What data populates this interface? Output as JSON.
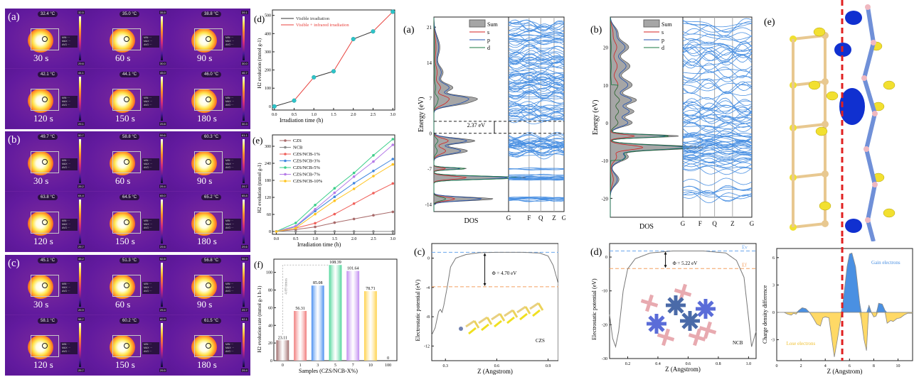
{
  "thermal": {
    "groups": [
      {
        "letter": "(a)",
        "cells": [
          {
            "time": "30 s",
            "temp": "32.4 °C",
            "max": "32.5",
            "min": "29.6"
          },
          {
            "time": "60 s",
            "temp": "35.0 °C",
            "max": "35.5",
            "min": "30.0"
          },
          {
            "time": "90 s",
            "temp": "38.8 °C",
            "max": "39.1",
            "min": "30.0"
          },
          {
            "time": "120 s",
            "temp": "42.1 °C",
            "max": "44.1",
            "min": "29.1"
          },
          {
            "time": "150 s",
            "temp": "44.1 °C",
            "max": "45.0",
            "min": "29.8"
          },
          {
            "time": "180 s",
            "temp": "46.0 °C",
            "max": "46.7",
            "min": "30.3"
          }
        ]
      },
      {
        "letter": "(b)",
        "cells": [
          {
            "time": "30 s",
            "temp": "49.7 °C",
            "max": "50.7",
            "min": "29.2"
          },
          {
            "time": "60 s",
            "temp": "58.8 °C",
            "max": "59.6",
            "min": "29.4"
          },
          {
            "time": "90 s",
            "temp": "60.3 °C",
            "max": "61.1",
            "min": "29.7"
          },
          {
            "time": "120 s",
            "temp": "63.8 °C",
            "max": "64.4",
            "min": "29.7"
          },
          {
            "time": "150 s",
            "temp": "64.5 °C",
            "max": "65.0",
            "min": "29.6"
          },
          {
            "time": "180 s",
            "temp": "65.2 °C",
            "max": "65.8",
            "min": "29.6"
          }
        ]
      },
      {
        "letter": "(c)",
        "cells": [
          {
            "time": "30 s",
            "temp": "45.1 °C",
            "max": "45.2",
            "min": "29.9"
          },
          {
            "time": "60 s",
            "temp": "51.3 °C",
            "max": "52.8",
            "min": "29.4"
          },
          {
            "time": "90 s",
            "temp": "56.8 °C",
            "max": "56.9",
            "min": "29.7"
          },
          {
            "time": "120 s",
            "temp": "58.1 °C",
            "max": "58.7",
            "min": "29.7"
          },
          {
            "time": "150 s",
            "temp": "60.2 °C",
            "max": "60.9",
            "min": "29.5"
          },
          {
            "time": "180 s",
            "temp": "61.5 °C",
            "max": "62.1",
            "min": "29.4"
          }
        ]
      }
    ]
  },
  "chart_data": [
    {
      "id": "d",
      "letter": "(d)",
      "type": "line",
      "xlabel": "Irradiation time (h)",
      "ylabel": "H2 evolution (mmol g-1)",
      "xlim": [
        0,
        3.0
      ],
      "ylim": [
        -20,
        530
      ],
      "xticks": [
        "0.0",
        "0.5",
        "1.0",
        "1.5",
        "2.0",
        "2.5",
        "3.0"
      ],
      "yticks": [
        "0",
        "100",
        "200",
        "300",
        "400",
        "500"
      ],
      "x": [
        0,
        0.5,
        1.0,
        1.5,
        2.0,
        2.5,
        3.0
      ],
      "values": [
        0,
        32,
        160,
        193,
        370,
        412,
        520
      ],
      "segments_colors": [
        "#333333",
        "#e8413c",
        "#333333",
        "#e8413c",
        "#333333",
        "#e8413c"
      ],
      "legend": [
        {
          "label": "Visible irradiation",
          "color": "#333333"
        },
        {
          "label": "Visible + infrared irradiation",
          "color": "#e8413c"
        }
      ],
      "marker_color": "#2ec4c8"
    },
    {
      "id": "e",
      "letter": "(e)",
      "type": "line",
      "xlabel": "Irradiation time (h)",
      "ylabel": "H2 evolution (mmol g-1)",
      "xlim": [
        0,
        3.0
      ],
      "ylim": [
        -10,
        340
      ],
      "xticks": [
        "0.0",
        "0.5",
        "1.0",
        "1.5",
        "2.0",
        "2.5",
        "3.0"
      ],
      "yticks": [
        "0",
        "60",
        "120",
        "180",
        "240",
        "300"
      ],
      "x": [
        0,
        0.5,
        1.0,
        1.5,
        2.0,
        2.5,
        3.0
      ],
      "series": [
        {
          "name": "CZS",
          "color": "#a86a6a",
          "values": [
            0,
            7,
            16,
            31,
            44,
            57,
            69
          ]
        },
        {
          "name": "NCB",
          "color": "#888888",
          "values": [
            0,
            0,
            0,
            0,
            0,
            0,
            0
          ]
        },
        {
          "name": "CZS/NCB-1%",
          "color": "#f0605a",
          "values": [
            0,
            12,
            29,
            61,
            98,
            135,
            169
          ]
        },
        {
          "name": "CZS/NCB-3%",
          "color": "#3f86e0",
          "values": [
            0,
            17,
            72,
            122,
            170,
            213,
            255
          ]
        },
        {
          "name": "CZS/NCB-5%",
          "color": "#3ccf8a",
          "values": [
            0,
            30,
            93,
            152,
            206,
            268,
            325
          ]
        },
        {
          "name": "CZS/NCB-7%",
          "color": "#b57be8",
          "values": [
            0,
            19,
            78,
            136,
            193,
            246,
            305
          ]
        },
        {
          "name": "CZS/NCB-10%",
          "color": "#ffc420",
          "values": [
            0,
            12,
            61,
            108,
            150,
            195,
            236
          ]
        }
      ]
    },
    {
      "id": "f",
      "letter": "(f)",
      "type": "bar",
      "xlabel": "Samples (CZS/NCB-X%)",
      "ylabel": "H2 evolution rate (mmol g-1 h-1)",
      "ylim": [
        0,
        115
      ],
      "yticks": [
        "0",
        "20",
        "40",
        "60",
        "80",
        "100"
      ],
      "categories": [
        "0",
        "1",
        "3",
        "5",
        "7",
        "10",
        "100"
      ],
      "values": [
        23.11,
        56.31,
        85.08,
        108.39,
        101.64,
        78.71,
        0
      ],
      "labels": [
        "23.11",
        "56.31",
        "85.08",
        "108.39",
        "101.64",
        "78.71",
        "0"
      ],
      "colors": [
        "#9e6b6b",
        "#f07a7a",
        "#4a8ff0",
        "#4fd69a",
        "#c08bf0",
        "#ffd24a",
        "#cccccc"
      ],
      "annotation": "4.69 times"
    },
    {
      "id": "dos-a",
      "letter": "(a)",
      "type": "line",
      "xlabel": "DOS",
      "ylabel": "Energy (eV)",
      "ylim": [
        -15.5,
        23
      ],
      "yticks": [
        "-14",
        "-7",
        "0",
        "7",
        "14",
        "21"
      ],
      "kpath": [
        "G",
        "F",
        "Q",
        "Z",
        "G"
      ],
      "gap_label": "2.37 eV",
      "vbm": 0,
      "cbm": 2.37,
      "legend": [
        {
          "label": "Sum",
          "color": "#999999"
        },
        {
          "label": "s",
          "color": "#d42020"
        },
        {
          "label": "p",
          "color": "#2050b0"
        },
        {
          "label": "d",
          "color": "#1a7a40"
        }
      ],
      "band_color": "#4a90e2"
    },
    {
      "id": "dos-b",
      "letter": "(b)",
      "type": "line",
      "xlabel": "DOS",
      "ylabel": "Energy (eV)",
      "ylim": [
        -25,
        28
      ],
      "yticks": [
        "-20",
        "-10",
        "0",
        "10",
        "20"
      ],
      "kpath": [
        "G",
        "F",
        "Q",
        "Z",
        "G"
      ],
      "legend": [
        {
          "label": "Sum",
          "color": "#999999"
        },
        {
          "label": "s",
          "color": "#d42020"
        },
        {
          "label": "p",
          "color": "#2050b0"
        },
        {
          "label": "d",
          "color": "#1a7a40"
        }
      ],
      "band_color": "#4a90e2"
    },
    {
      "id": "pot-c",
      "letter": "(c)",
      "type": "line",
      "xlabel": "Z (Angstrom)",
      "ylabel": "Electrostatic potential (eV)",
      "xlim": [
        0.22,
        0.96
      ],
      "ylim": [
        -14,
        2
      ],
      "xticks": [
        "0.3",
        "0.6",
        "0.9"
      ],
      "xtick_values": [
        0.3,
        0.6,
        0.9
      ],
      "yticks": [
        "0",
        "-4",
        "-8",
        "-12"
      ],
      "ytick_values": [
        0,
        -4,
        -8,
        -12
      ],
      "vacuum_level": 0.8,
      "fermi_level": -3.9,
      "phi_label": "Φ = 4.70 eV",
      "structure_label": "CZS",
      "curve": [
        [
          0.22,
          -10.5
        ],
        [
          0.24,
          -9.5
        ],
        [
          0.26,
          -7.3
        ],
        [
          0.27,
          -7.0
        ],
        [
          0.28,
          -7.4
        ],
        [
          0.29,
          -6.5
        ],
        [
          0.31,
          -4.0
        ],
        [
          0.33,
          -1.2
        ],
        [
          0.36,
          0.0
        ],
        [
          0.42,
          0.5
        ],
        [
          0.5,
          0.75
        ],
        [
          0.6,
          0.8
        ],
        [
          0.75,
          0.8
        ],
        [
          0.85,
          0.7
        ],
        [
          0.9,
          0.3
        ],
        [
          0.93,
          -1.0
        ],
        [
          0.96,
          -3.5
        ]
      ]
    },
    {
      "id": "pot-d",
      "letter": "(d)",
      "type": "line",
      "xlabel": "Z (Angstrom)",
      "ylabel": "Electrostatic potential (eV)",
      "xlim": [
        0.08,
        1.05
      ],
      "ylim": [
        -30,
        4
      ],
      "xticks": [
        "0.2",
        "0.4",
        "0.6",
        "0.8",
        "1.0"
      ],
      "xtick_values": [
        0.2,
        0.4,
        0.6,
        0.8,
        1.0
      ],
      "yticks": [
        "0",
        "-10",
        "-20",
        "-30"
      ],
      "ytick_values": [
        0,
        -10,
        -20,
        -30
      ],
      "vacuum_level": 1.8,
      "fermi_level": -3.4,
      "phi_label": "Φ = 5.22 eV",
      "ev_label": "Ev",
      "ef_label": "Ef",
      "structure_label": "NCB",
      "curve": [
        [
          0.08,
          -17
        ],
        [
          0.1,
          -24
        ],
        [
          0.12,
          -26.5
        ],
        [
          0.14,
          -22
        ],
        [
          0.17,
          -10
        ],
        [
          0.2,
          -3.5
        ],
        [
          0.25,
          -0.5
        ],
        [
          0.35,
          1.2
        ],
        [
          0.5,
          1.8
        ],
        [
          0.7,
          1.8
        ],
        [
          0.85,
          1.2
        ],
        [
          0.92,
          -1
        ],
        [
          0.97,
          -6
        ],
        [
          1.0,
          -18
        ],
        [
          1.02,
          -26.5
        ],
        [
          1.05,
          -22
        ]
      ]
    },
    {
      "id": "charge",
      "letter": "(e)",
      "type": "area",
      "xlabel": "Z (Angstrom)",
      "ylabel": "Charge density difference",
      "xlim": [
        0,
        11.2
      ],
      "ylim": [
        -5.3,
        7
      ],
      "xticks": [
        "0",
        "2",
        "4",
        "6",
        "8",
        "10"
      ],
      "xtick_values": [
        0,
        2,
        4,
        6,
        8,
        10
      ],
      "yticks": [
        "6",
        "3",
        "0",
        "-3"
      ],
      "ytick_values": [
        6,
        3,
        0,
        -3
      ],
      "interface_z": 5.4,
      "gain_label": "Gain electrons",
      "lose_label": "Lose electrons",
      "gain_color": "#4a90e2",
      "lose_color": "#ffd966",
      "curve": [
        [
          0.6,
          0
        ],
        [
          0.9,
          -0.2
        ],
        [
          1.2,
          -0.3
        ],
        [
          1.4,
          -0.1
        ],
        [
          1.6,
          -0.2
        ],
        [
          1.8,
          0.2
        ],
        [
          2.1,
          0.5
        ],
        [
          2.4,
          0.4
        ],
        [
          2.7,
          0
        ],
        [
          3.0,
          -0.6
        ],
        [
          3.3,
          -1.3
        ],
        [
          3.6,
          -1.5
        ],
        [
          3.8,
          -0.6
        ],
        [
          4.0,
          -0.5
        ],
        [
          4.3,
          -0.6
        ],
        [
          4.5,
          -2.5
        ],
        [
          4.75,
          -4.9
        ],
        [
          5.0,
          -3.0
        ],
        [
          5.3,
          -0.5
        ],
        [
          5.5,
          1.5
        ],
        [
          5.8,
          5.0
        ],
        [
          6.0,
          6.4
        ],
        [
          6.2,
          6.5
        ],
        [
          6.5,
          5.0
        ],
        [
          6.8,
          1.5
        ],
        [
          7.0,
          -1.0
        ],
        [
          7.2,
          -3.0
        ],
        [
          7.4,
          -4.2
        ],
        [
          7.6,
          0.8
        ],
        [
          7.8,
          0
        ],
        [
          8.0,
          -0.5
        ],
        [
          8.2,
          -0.4
        ],
        [
          8.4,
          1.0
        ],
        [
          8.7,
          0.9
        ],
        [
          8.9,
          0.3
        ],
        [
          9.1,
          -1.2
        ],
        [
          9.4,
          -0.9
        ],
        [
          9.6,
          -1.0
        ],
        [
          9.9,
          -0.7
        ],
        [
          10.2,
          -0.6
        ],
        [
          10.5,
          -0.3
        ],
        [
          10.8,
          -0.1
        ],
        [
          11.2,
          -0.1
        ]
      ]
    }
  ],
  "structure_panel": {
    "letter": "(e)"
  }
}
